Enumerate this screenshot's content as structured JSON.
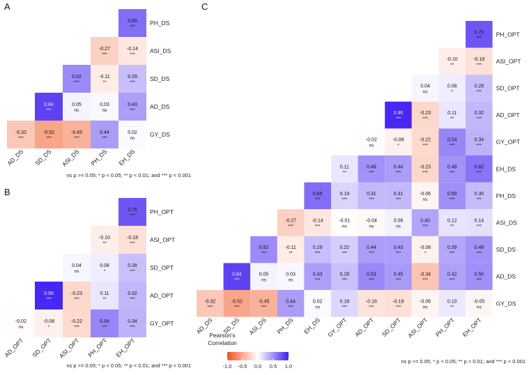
{
  "colors": {
    "negative": "#f4511e",
    "zero": "#ffffff",
    "positive": "#3f1ef0"
  },
  "panels": {
    "A": {
      "letter": "A",
      "footnote": "ns p >= 0.05; * p < 0.05; ** p < 0.01; and *** p < 0.001"
    },
    "B": {
      "letter": "B",
      "footnote": "ns p >= 0.05; * p < 0.05; ** p < 0.01; and *** p < 0.001"
    },
    "C": {
      "letter": "C",
      "footnote": "ns p >= 0.05; * p < 0.05; ** p < 0.01; and *** p < 0.001"
    }
  },
  "legend": {
    "title_line1": "Pearson's",
    "title_line2": "Correlation",
    "ticks": [
      "-1.0",
      "-0.5",
      "0.0",
      "0.5",
      "1.0"
    ],
    "tick_values": [
      -1.0,
      -0.5,
      0.0,
      0.5,
      1.0
    ]
  },
  "chart_data": [
    {
      "panel": "A",
      "type": "heatmap",
      "title": "",
      "xlabel": "",
      "ylabel": "",
      "x_labels": [
        "AD_DS",
        "SD_DS",
        "ASI_DS",
        "PH_DS",
        "EH_DS"
      ],
      "y_labels": [
        "PH_DS",
        "ASI_DS",
        "SD_DS",
        "AD_DS",
        "GY_DS"
      ],
      "cells": [
        {
          "row": "PH_DS",
          "col": "EH_DS",
          "value": 0.65,
          "label": "0.65",
          "sig": "***"
        },
        {
          "row": "ASI_DS",
          "col": "PH_DS",
          "value": -0.27,
          "label": "-0.27",
          "sig": "***"
        },
        {
          "row": "ASI_DS",
          "col": "EH_DS",
          "value": -0.14,
          "label": "-0.14",
          "sig": "***"
        },
        {
          "row": "SD_DS",
          "col": "ASI_DS",
          "value": 0.52,
          "label": "0.52",
          "sig": "***"
        },
        {
          "row": "SD_DS",
          "col": "PH_DS",
          "value": -0.11,
          "label": "-0.11",
          "sig": "**"
        },
        {
          "row": "SD_DS",
          "col": "EH_DS",
          "value": 0.29,
          "label": "0.29",
          "sig": "***"
        },
        {
          "row": "AD_DS",
          "col": "SD_DS",
          "value": 0.84,
          "label": "0.84",
          "sig": "***"
        },
        {
          "row": "AD_DS",
          "col": "ASI_DS",
          "value": 0.05,
          "label": "0.05",
          "sig": "ns"
        },
        {
          "row": "AD_DS",
          "col": "PH_DS",
          "value": 0.03,
          "label": "0.03",
          "sig": "ns"
        },
        {
          "row": "AD_DS",
          "col": "EH_DS",
          "value": 0.43,
          "label": "0.43",
          "sig": "***"
        },
        {
          "row": "GY_DS",
          "col": "AD_DS",
          "value": -0.32,
          "label": "-0.32",
          "sig": "***"
        },
        {
          "row": "GY_DS",
          "col": "SD_DS",
          "value": -0.52,
          "label": "-0.52",
          "sig": "***"
        },
        {
          "row": "GY_DS",
          "col": "ASI_DS",
          "value": -0.45,
          "label": "-0.45",
          "sig": "***"
        },
        {
          "row": "GY_DS",
          "col": "PH_DS",
          "value": 0.44,
          "label": "0.44",
          "sig": "***"
        },
        {
          "row": "GY_DS",
          "col": "EH_DS",
          "value": 0.02,
          "label": "0.02",
          "sig": "ns"
        }
      ]
    },
    {
      "panel": "B",
      "type": "heatmap",
      "title": "",
      "xlabel": "",
      "ylabel": "",
      "x_labels": [
        "AD_OPT",
        "SD_OPT",
        "ASI_OPT",
        "PH_OPT",
        "EH_OPT"
      ],
      "y_labels": [
        "PH_OPT",
        "ASI_OPT",
        "SD_OPT",
        "AD_OPT",
        "GY_OPT"
      ],
      "cells": [
        {
          "row": "PH_OPT",
          "col": "EH_OPT",
          "value": 0.75,
          "label": "0.75",
          "sig": "***"
        },
        {
          "row": "ASI_OPT",
          "col": "PH_OPT",
          "value": -0.1,
          "label": "-0.10",
          "sig": "**"
        },
        {
          "row": "ASI_OPT",
          "col": "EH_OPT",
          "value": -0.18,
          "label": "-0.18",
          "sig": "***"
        },
        {
          "row": "SD_OPT",
          "col": "ASI_OPT",
          "value": 0.04,
          "label": "0.04",
          "sig": "ns"
        },
        {
          "row": "SD_OPT",
          "col": "PH_OPT",
          "value": 0.08,
          "label": "0.08",
          "sig": "*"
        },
        {
          "row": "SD_OPT",
          "col": "EH_OPT",
          "value": 0.28,
          "label": "0.28",
          "sig": "***"
        },
        {
          "row": "AD_OPT",
          "col": "SD_OPT",
          "value": 0.96,
          "label": "0.96",
          "sig": "***"
        },
        {
          "row": "AD_OPT",
          "col": "ASI_OPT",
          "value": -0.23,
          "label": "-0.23",
          "sig": "***"
        },
        {
          "row": "AD_OPT",
          "col": "PH_OPT",
          "value": 0.11,
          "label": "0.11",
          "sig": "**"
        },
        {
          "row": "AD_OPT",
          "col": "EH_OPT",
          "value": 0.32,
          "label": "0.32",
          "sig": "***"
        },
        {
          "row": "GY_OPT",
          "col": "AD_OPT",
          "value": -0.02,
          "label": "-0.02",
          "sig": "ns"
        },
        {
          "row": "GY_OPT",
          "col": "SD_OPT",
          "value": -0.08,
          "label": "-0.08",
          "sig": "*"
        },
        {
          "row": "GY_OPT",
          "col": "ASI_OPT",
          "value": -0.22,
          "label": "-0.22",
          "sig": "***"
        },
        {
          "row": "GY_OPT",
          "col": "PH_OPT",
          "value": 0.54,
          "label": "0.54",
          "sig": "***"
        },
        {
          "row": "GY_OPT",
          "col": "EH_OPT",
          "value": 0.34,
          "label": "0.34",
          "sig": "***"
        }
      ]
    },
    {
      "panel": "C",
      "type": "heatmap",
      "title": "",
      "xlabel": "",
      "ylabel": "",
      "x_labels": [
        "AD_DS",
        "SD_DS",
        "ASI_DS",
        "PH_DS",
        "EH_DS",
        "GY_OPT",
        "AD_OPT",
        "SD_OPT",
        "ASI_OPT",
        "PH_OPT",
        "EH_OPT"
      ],
      "y_labels": [
        "PH_OPT",
        "ASI_OPT",
        "SD_OPT",
        "AD_OPT",
        "GY_OPT",
        "EH_DS",
        "PH_DS",
        "ASI_DS",
        "SD_DS",
        "AD_DS",
        "GY_DS"
      ],
      "cells": [
        {
          "row": "PH_OPT",
          "col": "EH_OPT",
          "value": 0.75,
          "label": "0.75",
          "sig": "***"
        },
        {
          "row": "ASI_OPT",
          "col": "PH_OPT",
          "value": -0.1,
          "label": "-0.10",
          "sig": "**"
        },
        {
          "row": "ASI_OPT",
          "col": "EH_OPT",
          "value": -0.18,
          "label": "-0.18",
          "sig": "***"
        },
        {
          "row": "SD_OPT",
          "col": "ASI_OPT",
          "value": 0.04,
          "label": "0.04",
          "sig": "ns"
        },
        {
          "row": "SD_OPT",
          "col": "PH_OPT",
          "value": 0.08,
          "label": "0.08",
          "sig": "*"
        },
        {
          "row": "SD_OPT",
          "col": "EH_OPT",
          "value": 0.28,
          "label": "0.28",
          "sig": "***"
        },
        {
          "row": "AD_OPT",
          "col": "SD_OPT",
          "value": 0.96,
          "label": "0.96",
          "sig": "***"
        },
        {
          "row": "AD_OPT",
          "col": "ASI_OPT",
          "value": -0.23,
          "label": "-0.23",
          "sig": "***"
        },
        {
          "row": "AD_OPT",
          "col": "PH_OPT",
          "value": 0.11,
          "label": "0.11",
          "sig": "**"
        },
        {
          "row": "AD_OPT",
          "col": "EH_OPT",
          "value": 0.32,
          "label": "0.32",
          "sig": "***"
        },
        {
          "row": "GY_OPT",
          "col": "AD_OPT",
          "value": -0.02,
          "label": "-0.02",
          "sig": "ns"
        },
        {
          "row": "GY_OPT",
          "col": "SD_OPT",
          "value": -0.08,
          "label": "-0.08",
          "sig": "*"
        },
        {
          "row": "GY_OPT",
          "col": "ASI_OPT",
          "value": -0.22,
          "label": "-0.22",
          "sig": "***"
        },
        {
          "row": "GY_OPT",
          "col": "PH_OPT",
          "value": 0.54,
          "label": "0.54",
          "sig": "***"
        },
        {
          "row": "GY_OPT",
          "col": "EH_OPT",
          "value": 0.34,
          "label": "0.34",
          "sig": "***"
        },
        {
          "row": "EH_DS",
          "col": "GY_OPT",
          "value": 0.11,
          "label": "0.11",
          "sig": "**"
        },
        {
          "row": "EH_DS",
          "col": "AD_OPT",
          "value": 0.49,
          "label": "0.49",
          "sig": "***"
        },
        {
          "row": "EH_DS",
          "col": "SD_OPT",
          "value": 0.44,
          "label": "0.44",
          "sig": "***"
        },
        {
          "row": "EH_DS",
          "col": "ASI_OPT",
          "value": -0.23,
          "label": "-0.23",
          "sig": "***"
        },
        {
          "row": "EH_DS",
          "col": "PH_OPT",
          "value": 0.48,
          "label": "0.48",
          "sig": "***"
        },
        {
          "row": "EH_DS",
          "col": "EH_OPT",
          "value": 0.62,
          "label": "0.62",
          "sig": "***"
        },
        {
          "row": "PH_DS",
          "col": "EH_DS",
          "value": 0.65,
          "label": "0.65",
          "sig": "***"
        },
        {
          "row": "PH_DS",
          "col": "GY_OPT",
          "value": 0.19,
          "label": "0.19",
          "sig": "***"
        },
        {
          "row": "PH_DS",
          "col": "AD_OPT",
          "value": 0.31,
          "label": "0.31",
          "sig": "***"
        },
        {
          "row": "PH_DS",
          "col": "SD_OPT",
          "value": 0.31,
          "label": "0.31",
          "sig": "***"
        },
        {
          "row": "PH_DS",
          "col": "ASI_OPT",
          "value": -0.06,
          "label": "-0.06",
          "sig": "ns"
        },
        {
          "row": "PH_DS",
          "col": "PH_OPT",
          "value": 0.5,
          "label": "0.50",
          "sig": "***"
        },
        {
          "row": "PH_DS",
          "col": "EH_OPT",
          "value": 0.3,
          "label": "0.30",
          "sig": "***"
        },
        {
          "row": "ASI_DS",
          "col": "PH_DS",
          "value": -0.27,
          "label": "-0.27",
          "sig": "***"
        },
        {
          "row": "ASI_DS",
          "col": "EH_DS",
          "value": -0.14,
          "label": "-0.14",
          "sig": "***"
        },
        {
          "row": "ASI_DS",
          "col": "GY_OPT",
          "value": -0.01,
          "label": "-0.01",
          "sig": "ns"
        },
        {
          "row": "ASI_DS",
          "col": "AD_OPT",
          "value": -0.04,
          "label": "-0.04",
          "sig": "ns"
        },
        {
          "row": "ASI_DS",
          "col": "SD_OPT",
          "value": 0.06,
          "label": "0.06",
          "sig": "ns"
        },
        {
          "row": "ASI_DS",
          "col": "ASI_OPT",
          "value": 0.4,
          "label": "0.40",
          "sig": "***"
        },
        {
          "row": "ASI_DS",
          "col": "PH_OPT",
          "value": 0.12,
          "label": "0.12",
          "sig": "**"
        },
        {
          "row": "ASI_DS",
          "col": "EH_OPT",
          "value": 0.14,
          "label": "0.14",
          "sig": "***"
        },
        {
          "row": "SD_DS",
          "col": "ASI_DS",
          "value": 0.52,
          "label": "0.52",
          "sig": "***"
        },
        {
          "row": "SD_DS",
          "col": "PH_DS",
          "value": -0.11,
          "label": "-0.11",
          "sig": "**"
        },
        {
          "row": "SD_DS",
          "col": "EH_DS",
          "value": 0.29,
          "label": "0.29",
          "sig": "***"
        },
        {
          "row": "SD_DS",
          "col": "GY_OPT",
          "value": 0.22,
          "label": "0.22",
          "sig": "***"
        },
        {
          "row": "SD_DS",
          "col": "AD_OPT",
          "value": 0.44,
          "label": "0.44",
          "sig": "***"
        },
        {
          "row": "SD_DS",
          "col": "SD_OPT",
          "value": 0.43,
          "label": "0.43",
          "sig": "***"
        },
        {
          "row": "SD_DS",
          "col": "ASI_OPT",
          "value": -0.08,
          "label": "-0.08",
          "sig": "*"
        },
        {
          "row": "SD_DS",
          "col": "PH_OPT",
          "value": 0.39,
          "label": "0.39",
          "sig": "***"
        },
        {
          "row": "SD_DS",
          "col": "EH_OPT",
          "value": 0.48,
          "label": "0.48",
          "sig": "***"
        },
        {
          "row": "AD_DS",
          "col": "SD_DS",
          "value": 0.84,
          "label": "0.84",
          "sig": "***"
        },
        {
          "row": "AD_DS",
          "col": "ASI_DS",
          "value": 0.05,
          "label": "0.05",
          "sig": "ns"
        },
        {
          "row": "AD_DS",
          "col": "PH_DS",
          "value": 0.03,
          "label": "0.03",
          "sig": "ns"
        },
        {
          "row": "AD_DS",
          "col": "EH_DS",
          "value": 0.43,
          "label": "0.43",
          "sig": "***"
        },
        {
          "row": "AD_DS",
          "col": "GY_OPT",
          "value": 0.28,
          "label": "0.28",
          "sig": "***"
        },
        {
          "row": "AD_DS",
          "col": "AD_OPT",
          "value": 0.53,
          "label": "0.53",
          "sig": "***"
        },
        {
          "row": "AD_DS",
          "col": "SD_OPT",
          "value": 0.45,
          "label": "0.45",
          "sig": "***"
        },
        {
          "row": "AD_DS",
          "col": "ASI_OPT",
          "value": -0.34,
          "label": "-0.34",
          "sig": "***"
        },
        {
          "row": "AD_DS",
          "col": "PH_OPT",
          "value": 0.42,
          "label": "0.42",
          "sig": "***"
        },
        {
          "row": "AD_DS",
          "col": "EH_OPT",
          "value": 0.5,
          "label": "0.50",
          "sig": "***"
        },
        {
          "row": "GY_DS",
          "col": "AD_DS",
          "value": -0.32,
          "label": "-0.32",
          "sig": "***"
        },
        {
          "row": "GY_DS",
          "col": "SD_DS",
          "value": -0.52,
          "label": "-0.52",
          "sig": "***"
        },
        {
          "row": "GY_DS",
          "col": "ASI_DS",
          "value": -0.45,
          "label": "-0.45",
          "sig": "***"
        },
        {
          "row": "GY_DS",
          "col": "PH_DS",
          "value": 0.44,
          "label": "0.44",
          "sig": "***"
        },
        {
          "row": "GY_DS",
          "col": "EH_DS",
          "value": 0.02,
          "label": "0.02",
          "sig": "ns"
        },
        {
          "row": "GY_DS",
          "col": "GY_OPT",
          "value": 0.18,
          "label": "0.18",
          "sig": "***"
        },
        {
          "row": "GY_DS",
          "col": "AD_OPT",
          "value": -0.16,
          "label": "-0.16",
          "sig": "***"
        },
        {
          "row": "GY_DS",
          "col": "SD_OPT",
          "value": -0.18,
          "label": "-0.18",
          "sig": "***"
        },
        {
          "row": "GY_DS",
          "col": "ASI_OPT",
          "value": -0.06,
          "label": "-0.06",
          "sig": "ns"
        },
        {
          "row": "GY_DS",
          "col": "PH_OPT",
          "value": 0.1,
          "label": "0.10",
          "sig": "**"
        },
        {
          "row": "GY_DS",
          "col": "EH_OPT",
          "value": -0.05,
          "label": "-0.05",
          "sig": "ns"
        }
      ]
    }
  ]
}
